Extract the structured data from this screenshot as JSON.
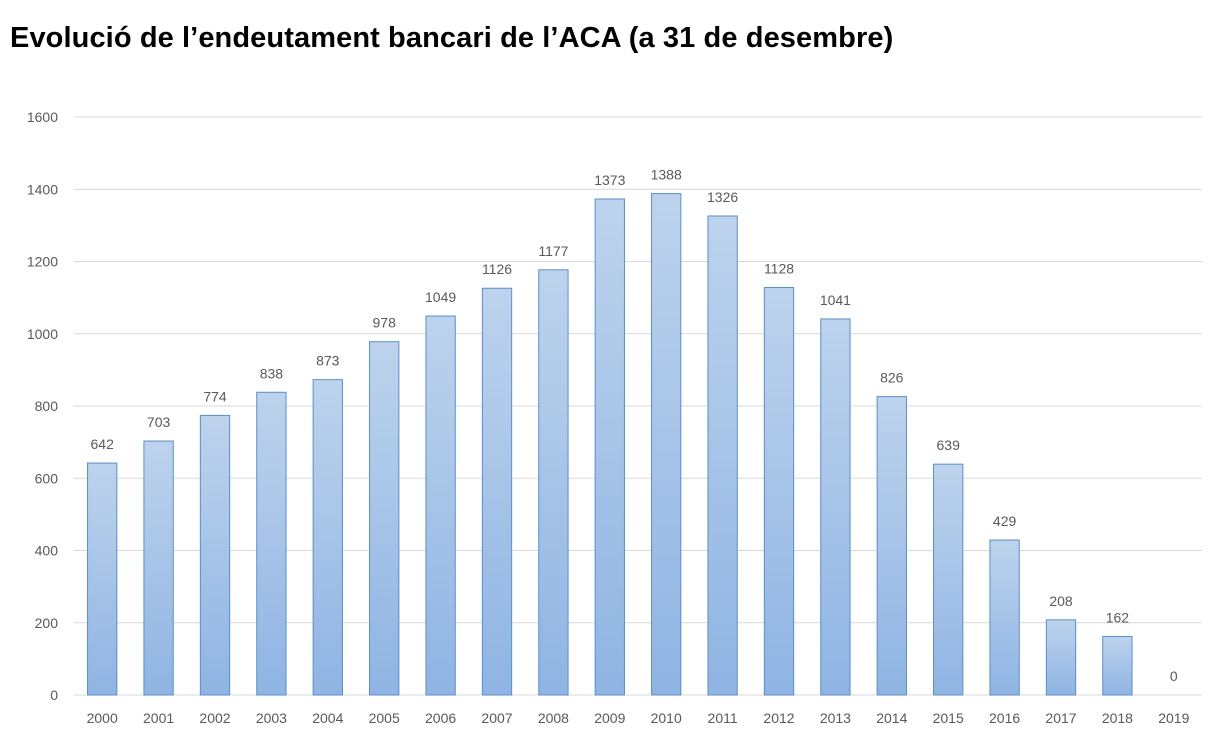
{
  "colors": {
    "bar_fill_top": "#bdd3ed",
    "bar_fill_bottom": "#8fb4e3",
    "bar_stroke": "#5b8fc7",
    "gridline": "#d9d9d9",
    "text": "#595959"
  },
  "chart_data": {
    "type": "bar",
    "title": "Evolució de l’endeutament bancari de l’ACA (a 31 de desembre)",
    "xlabel": "",
    "ylabel": "",
    "ylim": [
      0,
      1600
    ],
    "yticks": [
      0,
      200,
      400,
      600,
      800,
      1000,
      1200,
      1400,
      1600
    ],
    "grid": true,
    "legend": "none",
    "categories": [
      "2000",
      "2001",
      "2002",
      "2003",
      "2004",
      "2005",
      "2006",
      "2007",
      "2008",
      "2009",
      "2010",
      "2011",
      "2012",
      "2013",
      "2014",
      "2015",
      "2016",
      "2017",
      "2018",
      "2019"
    ],
    "values": [
      642,
      703,
      774,
      838,
      873,
      978,
      1049,
      1126,
      1177,
      1373,
      1388,
      1326,
      1128,
      1041,
      826,
      639,
      429,
      208,
      162,
      0
    ],
    "data_labels": [
      "642",
      "703",
      "774",
      "838",
      "873",
      "978",
      "1049",
      "1126",
      "1177",
      "1373",
      "1388",
      "1326",
      "1128",
      "1041",
      "826",
      "639",
      "429",
      "208",
      "162",
      "0"
    ]
  }
}
